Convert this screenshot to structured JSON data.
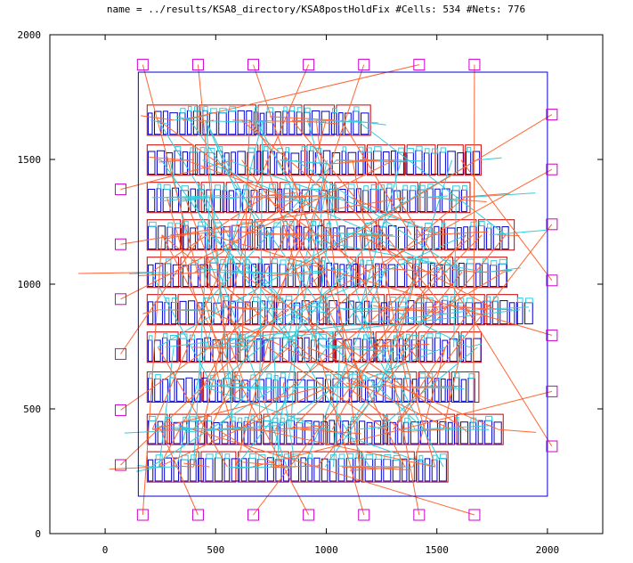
{
  "chart_data": {
    "type": "scatter",
    "title": "name = ../results/KSA8_directory/KSA8postHoldFix #Cells: 534 #Nets: 776",
    "xlabel": "",
    "ylabel": "",
    "xlim": [
      -250,
      2250
    ],
    "ylim": [
      0,
      2000
    ],
    "xticks": [
      0,
      500,
      1000,
      1500,
      2000
    ],
    "yticks": [
      0,
      500,
      1000,
      1500,
      2000
    ],
    "grid": false,
    "colors": {
      "core": "#0000cc",
      "cell_outline": "#cc0000",
      "cell_body": "#0000cc",
      "pin": "#cc00cc",
      "net_a": "#ff6633",
      "net_b": "#33ccdd",
      "frame": "#000000"
    },
    "core_boundary": {
      "x0": 150,
      "y0": 150,
      "x1": 2000,
      "y1": 1850
    },
    "rows": [
      {
        "y": 200,
        "x_start": 190,
        "x_end": 1550,
        "height": 135
      },
      {
        "y": 350,
        "x_start": 190,
        "x_end": 1800,
        "height": 135
      },
      {
        "y": 520,
        "x_start": 190,
        "x_end": 1700,
        "height": 135
      },
      {
        "y": 680,
        "x_start": 190,
        "x_end": 1700,
        "height": 135
      },
      {
        "y": 830,
        "x_start": 190,
        "x_end": 1920,
        "height": 135
      },
      {
        "y": 980,
        "x_start": 190,
        "x_end": 1830,
        "height": 135
      },
      {
        "y": 1130,
        "x_start": 190,
        "x_end": 1850,
        "height": 135
      },
      {
        "y": 1280,
        "x_start": 190,
        "x_end": 1650,
        "height": 135
      },
      {
        "y": 1430,
        "x_start": 190,
        "x_end": 1700,
        "height": 135
      },
      {
        "y": 1590,
        "x_start": 190,
        "x_end": 1200,
        "height": 135
      }
    ],
    "io_pins": [
      {
        "x": 170,
        "y": 1880
      },
      {
        "x": 420,
        "y": 1880
      },
      {
        "x": 670,
        "y": 1880
      },
      {
        "x": 920,
        "y": 1880
      },
      {
        "x": 1170,
        "y": 1880
      },
      {
        "x": 1420,
        "y": 1880
      },
      {
        "x": 1670,
        "y": 1880
      },
      {
        "x": 170,
        "y": 75
      },
      {
        "x": 420,
        "y": 75
      },
      {
        "x": 670,
        "y": 75
      },
      {
        "x": 920,
        "y": 75
      },
      {
        "x": 1170,
        "y": 75
      },
      {
        "x": 1420,
        "y": 75
      },
      {
        "x": 1670,
        "y": 75
      },
      {
        "x": 70,
        "y": 1380
      },
      {
        "x": 70,
        "y": 1160
      },
      {
        "x": 70,
        "y": 940
      },
      {
        "x": 70,
        "y": 720
      },
      {
        "x": 70,
        "y": 495
      },
      {
        "x": 70,
        "y": 275
      },
      {
        "x": 2020,
        "y": 1680
      },
      {
        "x": 2020,
        "y": 1460
      },
      {
        "x": 2020,
        "y": 1240
      },
      {
        "x": 2020,
        "y": 1015
      },
      {
        "x": 2020,
        "y": 795
      },
      {
        "x": 2020,
        "y": 570
      },
      {
        "x": 2020,
        "y": 350
      }
    ]
  }
}
